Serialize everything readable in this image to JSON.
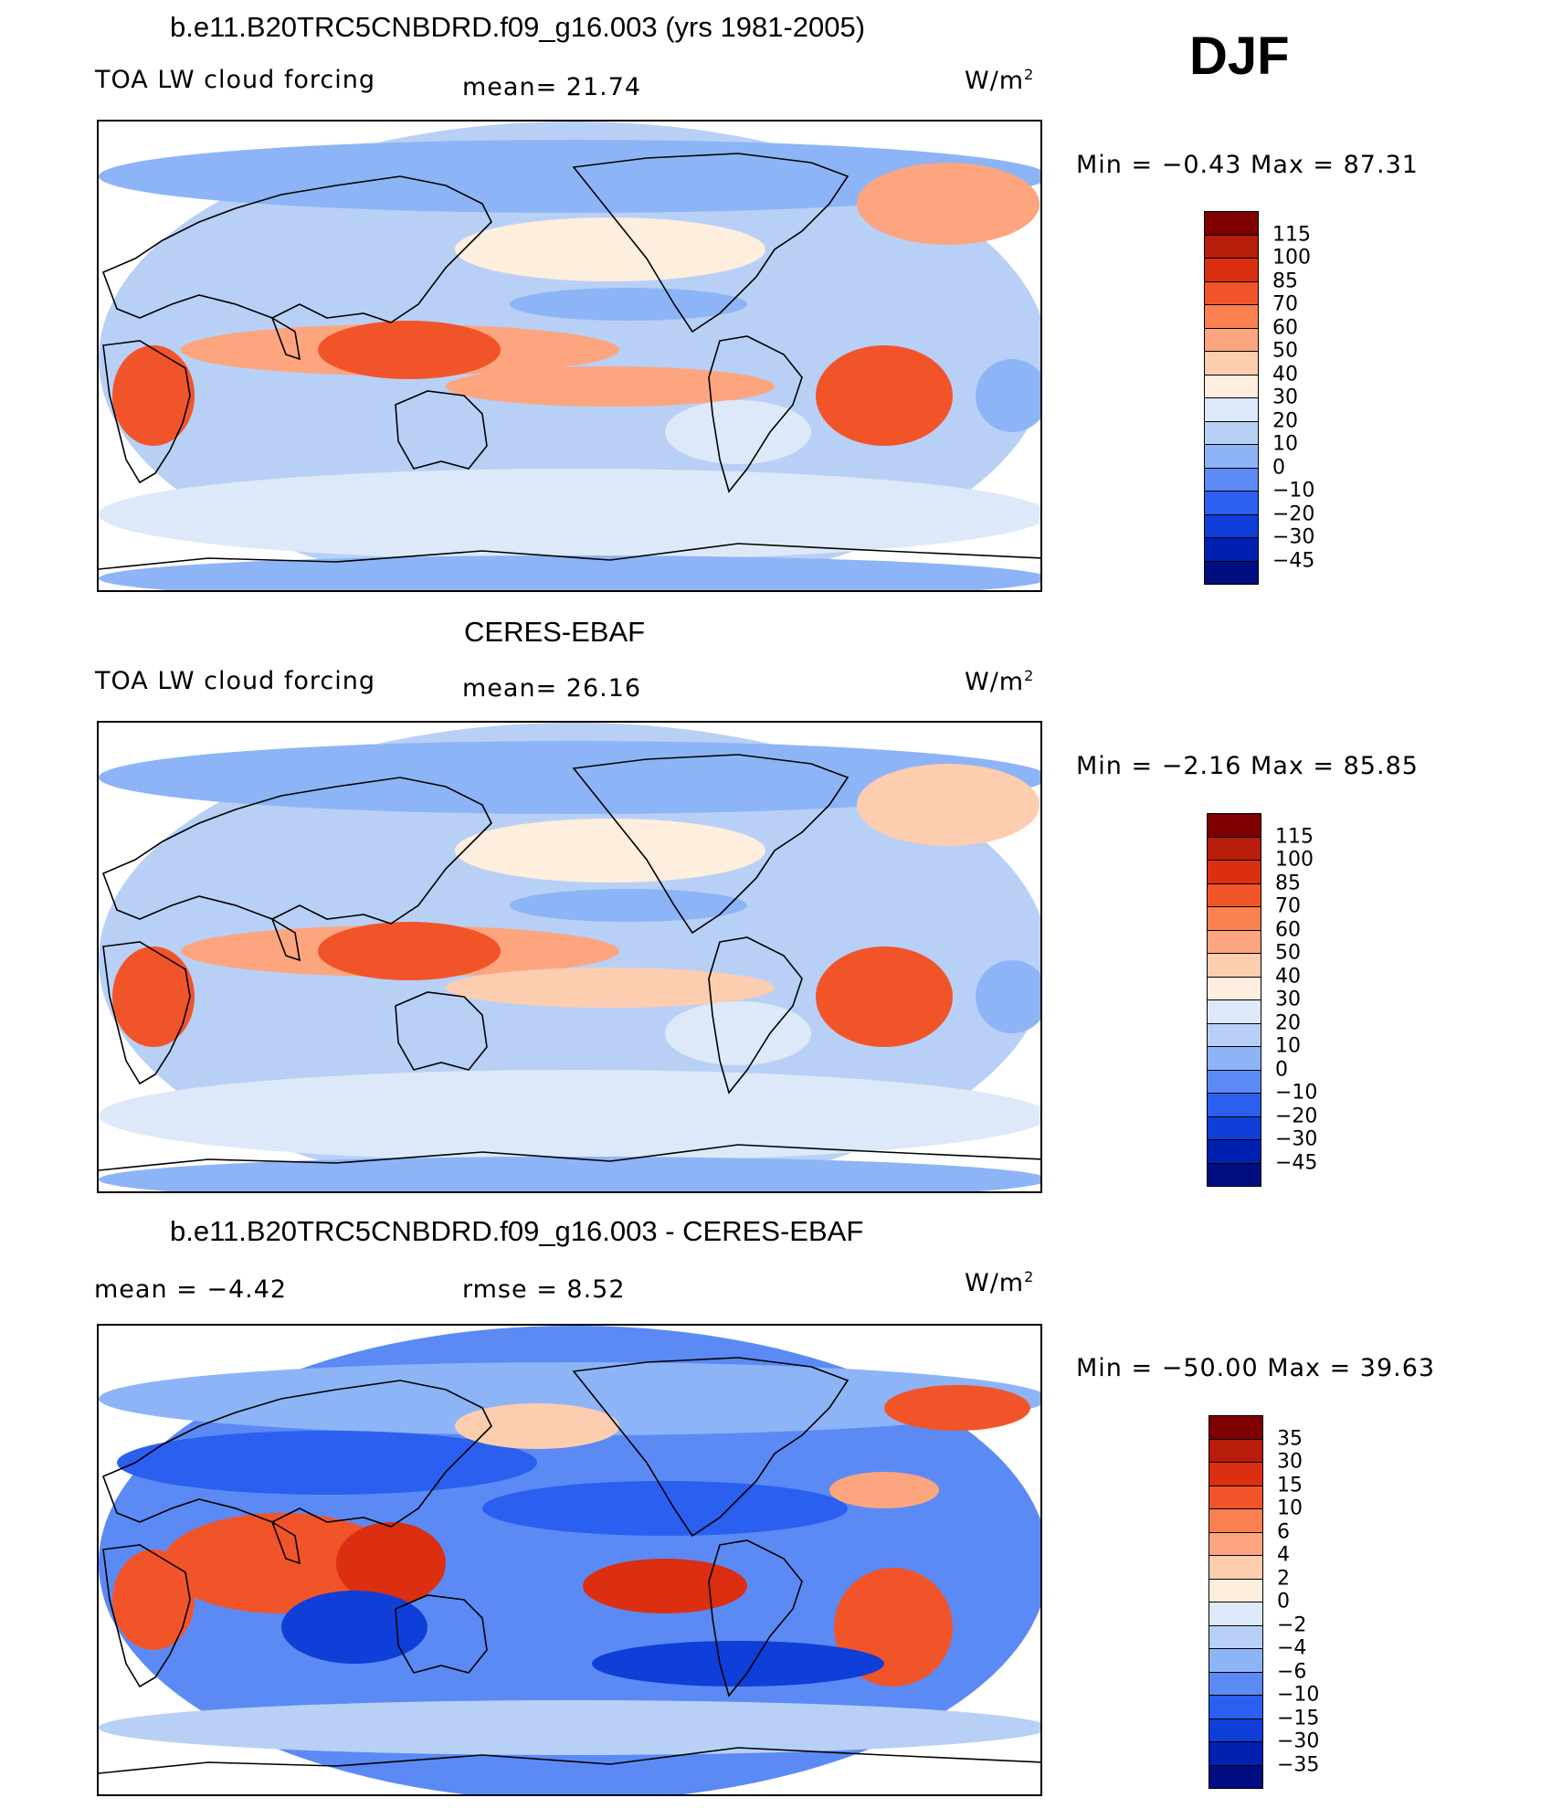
{
  "season": "DJF",
  "panels": [
    {
      "id": "model",
      "title": "b.e11.B20TRC5CNBDRD.f09_g16.003 (yrs 1981-2005)",
      "variable": "TOA LW cloud forcing",
      "stat_left": "",
      "stat_mid": "mean=   21.74",
      "units": "W/m",
      "units_sup": "2",
      "minmax": "Min  =   −0.43  Max  =    87.31",
      "colorbar": {
        "labels": [
          "115",
          "100",
          "85",
          "70",
          "60",
          "50",
          "40",
          "30",
          "20",
          "10",
          "0",
          "−10",
          "−20",
          "−30",
          "−45"
        ],
        "colors": [
          "#7f0000",
          "#b81c0a",
          "#dc2e10",
          "#f2542a",
          "#fb8050",
          "#fca57f",
          "#fdcdb0",
          "#fdeedd",
          "#dde9f8",
          "#b8d0f6",
          "#8db4f6",
          "#5b8af5",
          "#2b5ff0",
          "#0f3ed8",
          "#0020b0",
          "#000e80"
        ]
      }
    },
    {
      "id": "obs",
      "title": "CERES-EBAF",
      "variable": "TOA LW cloud forcing",
      "stat_left": "",
      "stat_mid": "mean=   26.16",
      "units": "W/m",
      "units_sup": "2",
      "minmax": "Min  =   −2.16  Max  =    85.85",
      "colorbar": {
        "labels": [
          "115",
          "100",
          "85",
          "70",
          "60",
          "50",
          "40",
          "30",
          "20",
          "10",
          "0",
          "−10",
          "−20",
          "−30",
          "−45"
        ],
        "colors": [
          "#7f0000",
          "#b81c0a",
          "#dc2e10",
          "#f2542a",
          "#fb8050",
          "#fca57f",
          "#fdcdb0",
          "#fdeedd",
          "#dde9f8",
          "#b8d0f6",
          "#8db4f6",
          "#5b8af5",
          "#2b5ff0",
          "#0f3ed8",
          "#0020b0",
          "#000e80"
        ]
      }
    },
    {
      "id": "diff",
      "title": "b.e11.B20TRC5CNBDRD.f09_g16.003 - CERES-EBAF",
      "variable": "",
      "stat_left": "mean  =    −4.42",
      "stat_mid": "rmse  =     8.52",
      "units": "W/m",
      "units_sup": "2",
      "minmax": "Min  = −50.00  Max  =    39.63",
      "colorbar": {
        "labels": [
          "35",
          "30",
          "15",
          "10",
          "6",
          "4",
          "2",
          "0",
          "−2",
          "−4",
          "−6",
          "−10",
          "−15",
          "−30",
          "−35"
        ],
        "colors": [
          "#7f0000",
          "#b81c0a",
          "#dc2e10",
          "#f2542a",
          "#fb8050",
          "#fca57f",
          "#fdcdb0",
          "#fdeedd",
          "#dde9f8",
          "#b8d0f6",
          "#8db4f6",
          "#5b8af5",
          "#2b5ff0",
          "#0f3ed8",
          "#0020b0",
          "#000e80"
        ]
      }
    }
  ]
}
